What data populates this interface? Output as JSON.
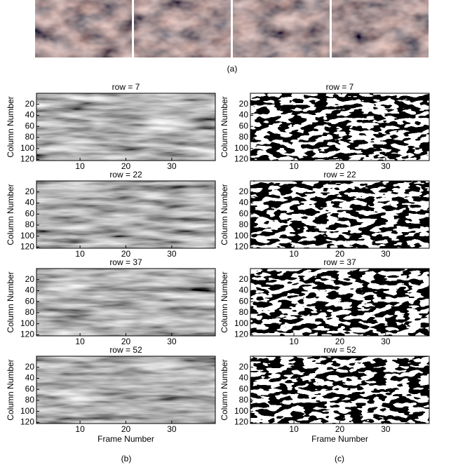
{
  "captions": {
    "a": "(a)",
    "b": "(b)",
    "c": "(c)"
  },
  "chart_data": [
    {
      "type": "heatmap",
      "colormap": "gray",
      "title": "row = 7",
      "y_label": "Column Number",
      "xlim": [
        0.5,
        39.5
      ],
      "ylim": [
        0,
        122
      ],
      "xticks": [
        10,
        20,
        30
      ],
      "yticks": [
        20,
        40,
        60,
        80,
        100,
        120
      ]
    },
    {
      "type": "heatmap",
      "colormap": "binary",
      "title": "row = 7",
      "y_label": "Column Number",
      "xlim": [
        0.5,
        39.5
      ],
      "ylim": [
        0,
        122
      ],
      "xticks": [
        10,
        20,
        30
      ],
      "yticks": [
        20,
        40,
        60,
        80,
        100,
        120
      ]
    },
    {
      "type": "heatmap",
      "colormap": "gray",
      "title": "row = 22",
      "y_label": "Column Number",
      "xlim": [
        0.5,
        39.5
      ],
      "ylim": [
        0,
        122
      ],
      "xticks": [
        10,
        20,
        30
      ],
      "yticks": [
        20,
        40,
        60,
        80,
        100,
        120
      ]
    },
    {
      "type": "heatmap",
      "colormap": "binary",
      "title": "row = 22",
      "y_label": "Column Number",
      "xlim": [
        0.5,
        39.5
      ],
      "ylim": [
        0,
        122
      ],
      "xticks": [
        10,
        20,
        30
      ],
      "yticks": [
        20,
        40,
        60,
        80,
        100,
        120
      ]
    },
    {
      "type": "heatmap",
      "colormap": "gray",
      "title": "row = 37",
      "y_label": "Column Number",
      "xlim": [
        0.5,
        39.5
      ],
      "ylim": [
        0,
        122
      ],
      "xticks": [
        10,
        20,
        30
      ],
      "yticks": [
        20,
        40,
        60,
        80,
        100,
        120
      ]
    },
    {
      "type": "heatmap",
      "colormap": "binary",
      "title": "row = 37",
      "y_label": "Column Number",
      "xlim": [
        0.5,
        39.5
      ],
      "ylim": [
        0,
        122
      ],
      "xticks": [
        10,
        20,
        30
      ],
      "yticks": [
        20,
        40,
        60,
        80,
        100,
        120
      ]
    },
    {
      "type": "heatmap",
      "colormap": "gray",
      "title": "row = 52",
      "y_label": "Column Number",
      "x_label": "Frame Number",
      "xlim": [
        0.5,
        39.5
      ],
      "ylim": [
        0,
        122
      ],
      "xticks": [
        10,
        20,
        30
      ],
      "yticks": [
        20,
        40,
        60,
        80,
        100,
        120
      ]
    },
    {
      "type": "heatmap",
      "colormap": "binary",
      "title": "row = 52",
      "y_label": "Column Number",
      "x_label": "Frame Number",
      "xlim": [
        0.5,
        39.5
      ],
      "ylim": [
        0,
        122
      ],
      "xticks": [
        10,
        20,
        30
      ],
      "yticks": [
        20,
        40,
        60,
        80,
        100,
        120
      ]
    }
  ]
}
